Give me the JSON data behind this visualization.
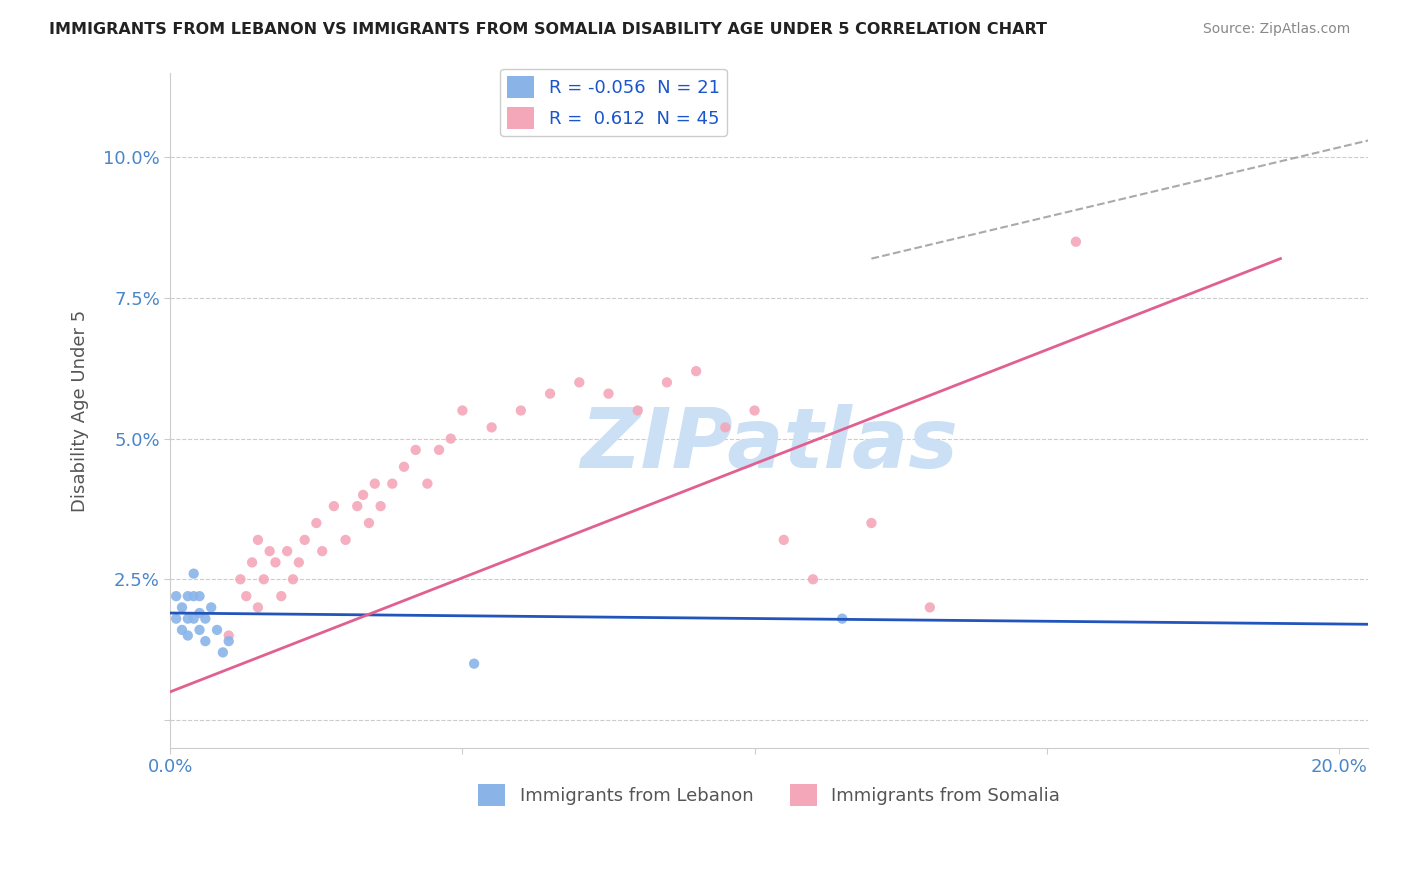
{
  "title": "IMMIGRANTS FROM LEBANON VS IMMIGRANTS FROM SOMALIA DISABILITY AGE UNDER 5 CORRELATION CHART",
  "source": "Source: ZipAtlas.com",
  "ylabel": "Disability Age Under 5",
  "xlim": [
    0.0,
    0.205
  ],
  "ylim": [
    -0.005,
    0.115
  ],
  "xticks": [
    0.0,
    0.05,
    0.1,
    0.15,
    0.2
  ],
  "xticklabels": [
    "0.0%",
    "",
    "",
    "",
    "20.0%"
  ],
  "yticks": [
    0.0,
    0.025,
    0.05,
    0.075,
    0.1
  ],
  "yticklabels": [
    "",
    "2.5%",
    "5.0%",
    "7.5%",
    "10.0%"
  ],
  "lebanon_R": -0.056,
  "lebanon_N": 21,
  "somalia_R": 0.612,
  "somalia_N": 45,
  "lebanon_color": "#8ab4e8",
  "somalia_color": "#f4a7b9",
  "lebanon_line_color": "#2255bb",
  "somalia_line_color": "#e06090",
  "axis_color": "#4a86c8",
  "grid_color": "#cccccc",
  "watermark_color": "#cce0f5",
  "lebanon_x": [
    0.001,
    0.001,
    0.002,
    0.002,
    0.003,
    0.003,
    0.003,
    0.004,
    0.004,
    0.004,
    0.005,
    0.005,
    0.005,
    0.006,
    0.006,
    0.007,
    0.008,
    0.009,
    0.01,
    0.115,
    0.052
  ],
  "lebanon_y": [
    0.018,
    0.022,
    0.016,
    0.02,
    0.015,
    0.018,
    0.022,
    0.018,
    0.022,
    0.026,
    0.016,
    0.019,
    0.022,
    0.014,
    0.018,
    0.02,
    0.016,
    0.012,
    0.014,
    0.018,
    0.01
  ],
  "somalia_x": [
    0.01,
    0.012,
    0.013,
    0.014,
    0.015,
    0.015,
    0.016,
    0.017,
    0.018,
    0.019,
    0.02,
    0.021,
    0.022,
    0.023,
    0.025,
    0.026,
    0.028,
    0.03,
    0.032,
    0.033,
    0.034,
    0.035,
    0.036,
    0.038,
    0.04,
    0.042,
    0.044,
    0.046,
    0.048,
    0.05,
    0.055,
    0.06,
    0.065,
    0.07,
    0.075,
    0.08,
    0.085,
    0.09,
    0.095,
    0.1,
    0.105,
    0.11,
    0.12,
    0.13,
    0.155
  ],
  "somalia_y": [
    0.015,
    0.025,
    0.022,
    0.028,
    0.02,
    0.032,
    0.025,
    0.03,
    0.028,
    0.022,
    0.03,
    0.025,
    0.028,
    0.032,
    0.035,
    0.03,
    0.038,
    0.032,
    0.038,
    0.04,
    0.035,
    0.042,
    0.038,
    0.042,
    0.045,
    0.048,
    0.042,
    0.048,
    0.05,
    0.055,
    0.052,
    0.055,
    0.058,
    0.06,
    0.058,
    0.055,
    0.06,
    0.062,
    0.052,
    0.055,
    0.032,
    0.025,
    0.035,
    0.02,
    0.085
  ],
  "diag_line_x": [
    0.12,
    0.205
  ],
  "diag_line_y": [
    0.082,
    0.103
  ],
  "somalia_line_x_start": 0.0,
  "somalia_line_x_end": 0.19,
  "somalia_line_y_start": 0.005,
  "somalia_line_y_end": 0.082,
  "lebanon_line_x_start": 0.0,
  "lebanon_line_x_end": 0.205,
  "lebanon_line_y_start": 0.019,
  "lebanon_line_y_end": 0.017
}
